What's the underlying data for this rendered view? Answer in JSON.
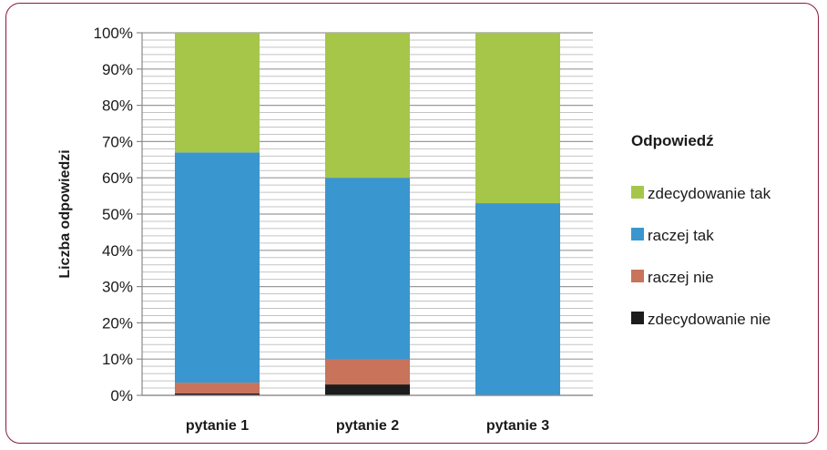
{
  "chart_data": {
    "type": "bar",
    "stacked": true,
    "percent": true,
    "categories": [
      "pytanie 1",
      "pytanie 2",
      "pytanie 3"
    ],
    "ylabel": "Liczba odpowiedzi",
    "xlabel": "",
    "ylim": [
      0,
      100
    ],
    "yticks": [
      "0%",
      "10%",
      "20%",
      "30%",
      "40%",
      "50%",
      "60%",
      "70%",
      "80%",
      "90%",
      "100%"
    ],
    "grid": true,
    "legend": {
      "title": "Odpowiedź",
      "placement": "right"
    },
    "series": [
      {
        "name": "zdecydowanie nie",
        "color": "#1c1c1c",
        "values": [
          0.5,
          3,
          0
        ]
      },
      {
        "name": "raczej nie",
        "color": "#c8735a",
        "values": [
          3,
          7,
          0
        ]
      },
      {
        "name": "raczej tak",
        "color": "#3a96cf",
        "values": [
          63.5,
          50,
          53
        ]
      },
      {
        "name": "zdecydowanie tak",
        "color": "#a6c64a",
        "values": [
          33,
          40,
          47
        ]
      }
    ]
  }
}
